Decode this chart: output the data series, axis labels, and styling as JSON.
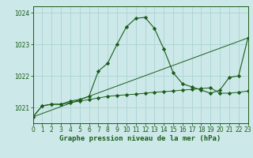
{
  "title": "Graphe pression niveau de la mer (hPa)",
  "bg": "#cce8e8",
  "grid_color": "#aad4d4",
  "lc": "#1a5c1a",
  "xlim": [
    0,
    23
  ],
  "ylim": [
    1020.5,
    1024.2
  ],
  "ytick_vals": [
    1021,
    1022,
    1023,
    1024
  ],
  "xtick_vals": [
    0,
    1,
    2,
    3,
    4,
    5,
    6,
    7,
    8,
    9,
    10,
    11,
    12,
    13,
    14,
    15,
    16,
    17,
    18,
    19,
    20,
    21,
    22,
    23
  ],
  "curve_peak_x": [
    0,
    1,
    2,
    3,
    4,
    5,
    6,
    7,
    8,
    9,
    10,
    11,
    12,
    13,
    14,
    15,
    16,
    17,
    18,
    19,
    20,
    21,
    22,
    23
  ],
  "curve_peak_y": [
    1020.7,
    1021.05,
    1021.1,
    1021.1,
    1021.2,
    1021.25,
    1021.35,
    1022.15,
    1022.4,
    1023.0,
    1023.55,
    1023.82,
    1023.85,
    1023.5,
    1022.85,
    1022.1,
    1021.75,
    1021.65,
    1021.55,
    1021.45,
    1021.55,
    1021.95,
    1022.0,
    1023.2
  ],
  "curve_flat_x": [
    0,
    1,
    2,
    3,
    4,
    5,
    6,
    7,
    8,
    9,
    10,
    11,
    12,
    13,
    14,
    15,
    16,
    17,
    18,
    19,
    20,
    21,
    22,
    23
  ],
  "curve_flat_y": [
    1020.7,
    1021.05,
    1021.1,
    1021.1,
    1021.15,
    1021.2,
    1021.25,
    1021.3,
    1021.35,
    1021.38,
    1021.4,
    1021.42,
    1021.45,
    1021.48,
    1021.5,
    1021.52,
    1021.55,
    1021.57,
    1021.6,
    1021.62,
    1021.45,
    1021.45,
    1021.48,
    1021.52
  ],
  "line_x": [
    0,
    23
  ],
  "line_y": [
    1020.7,
    1023.2
  ]
}
